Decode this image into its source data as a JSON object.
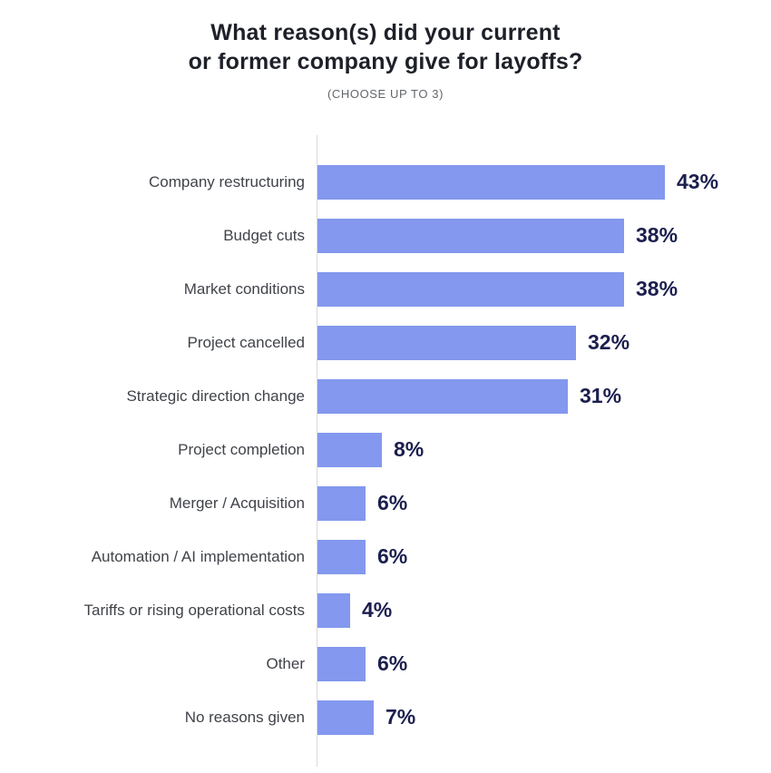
{
  "header": {
    "title_line1": "What reason(s) did your current",
    "title_line2": "or former company give for layoffs?",
    "subtitle": "(CHOOSE UP TO 3)"
  },
  "chart_data": {
    "type": "bar",
    "orientation": "horizontal",
    "title": "What reason(s) did your current or former company give for layoffs?",
    "subtitle": "(CHOOSE UP TO 3)",
    "categories": [
      "Company restructuring",
      "Budget cuts",
      "Market conditions",
      "Project cancelled",
      "Strategic direction change",
      "Project completion",
      "Merger / Acquisition",
      "Automation / AI implementation",
      "Tariffs or rising operational costs",
      "Other",
      "No reasons given"
    ],
    "values": [
      43,
      38,
      38,
      32,
      31,
      8,
      6,
      6,
      4,
      6,
      7
    ],
    "value_labels": [
      "43%",
      "38%",
      "38%",
      "32%",
      "31%",
      "8%",
      "6%",
      "6%",
      "4%",
      "6%",
      "7%"
    ],
    "xlim": [
      0,
      50
    ],
    "grid": false,
    "legend": "none",
    "bar_color": "#8398ee",
    "value_label_color": "#1b1f4e",
    "axis_line_color": "#d9d9d9",
    "category_label_color": "#404349",
    "title_color": "#1e2029",
    "subtitle_color": "#63666b"
  }
}
